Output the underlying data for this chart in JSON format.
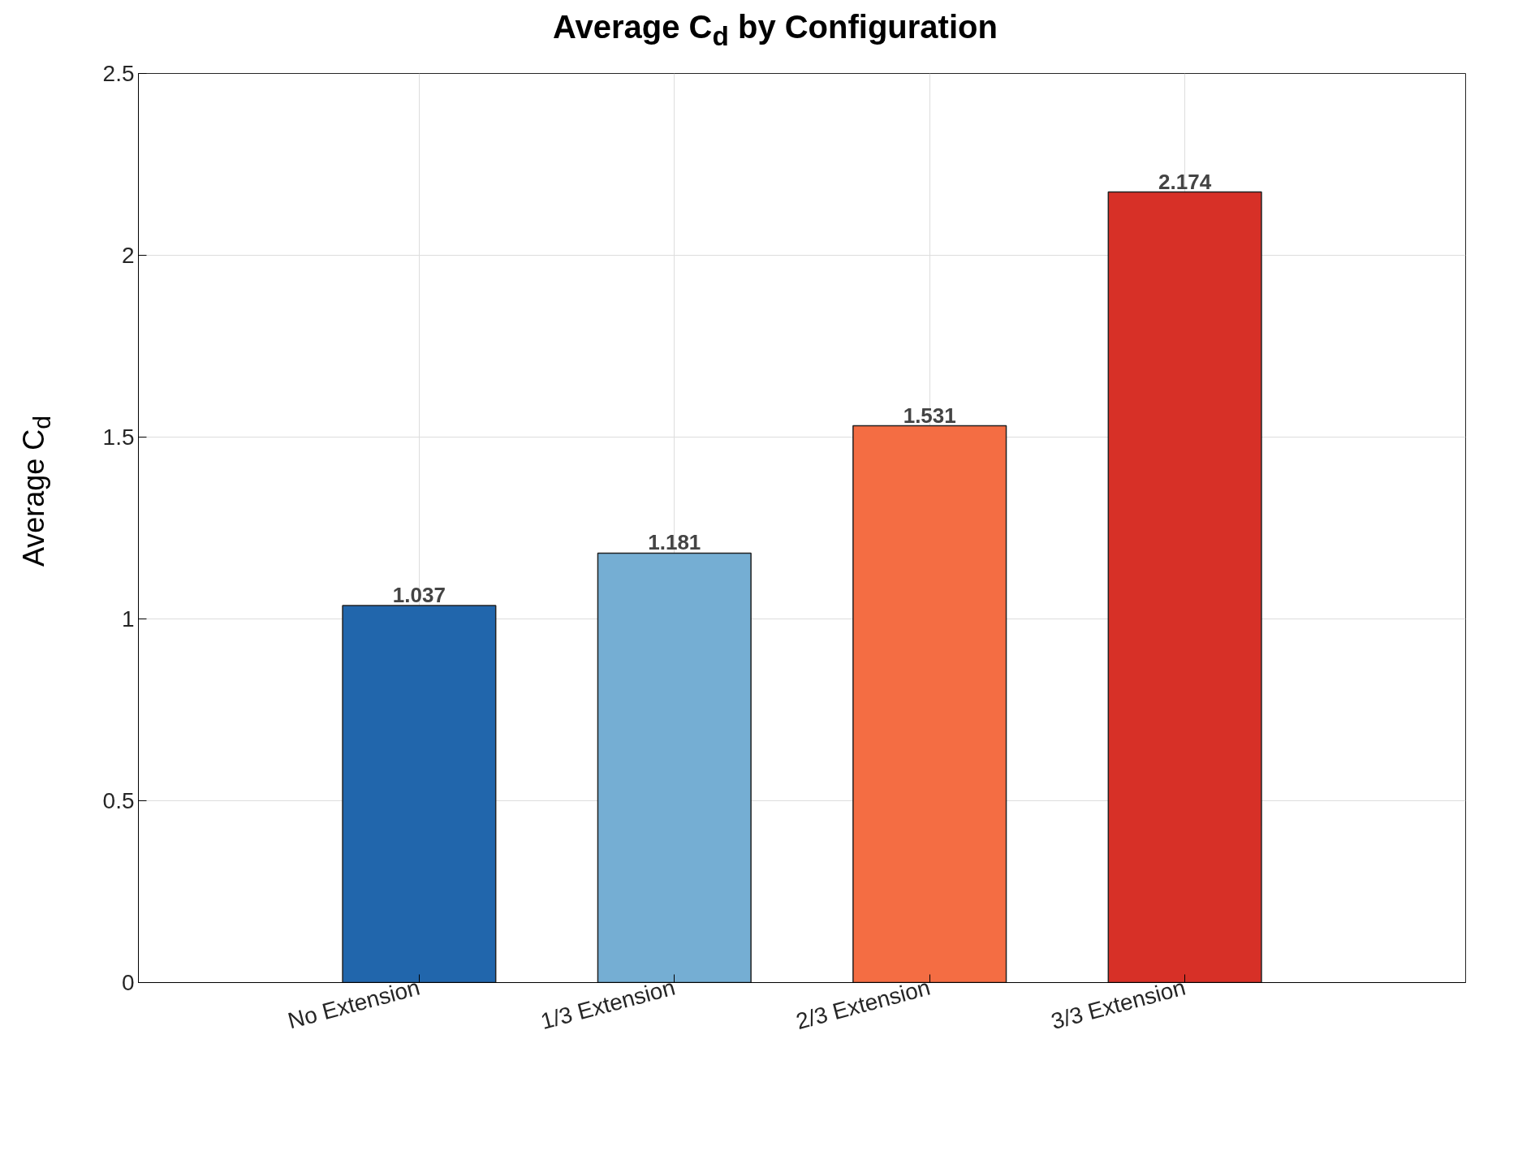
{
  "chart_data": {
    "type": "bar",
    "title": "Average C$_{d}$ by Configuration",
    "ylabel": "Average C$_{d}$",
    "categories": [
      "No Extension",
      "1/3 Extension",
      "2/3 Extension",
      "3/3 Extension"
    ],
    "values": [
      1.037,
      1.181,
      1.531,
      2.174
    ],
    "colors": [
      "#2166ac",
      "#75aed3",
      "#f46d43",
      "#d73027"
    ],
    "ylim": [
      0,
      2.5
    ],
    "yticks": [
      0,
      0.5,
      1,
      1.5,
      2,
      2.5
    ],
    "grid": true,
    "data_labels": true
  }
}
